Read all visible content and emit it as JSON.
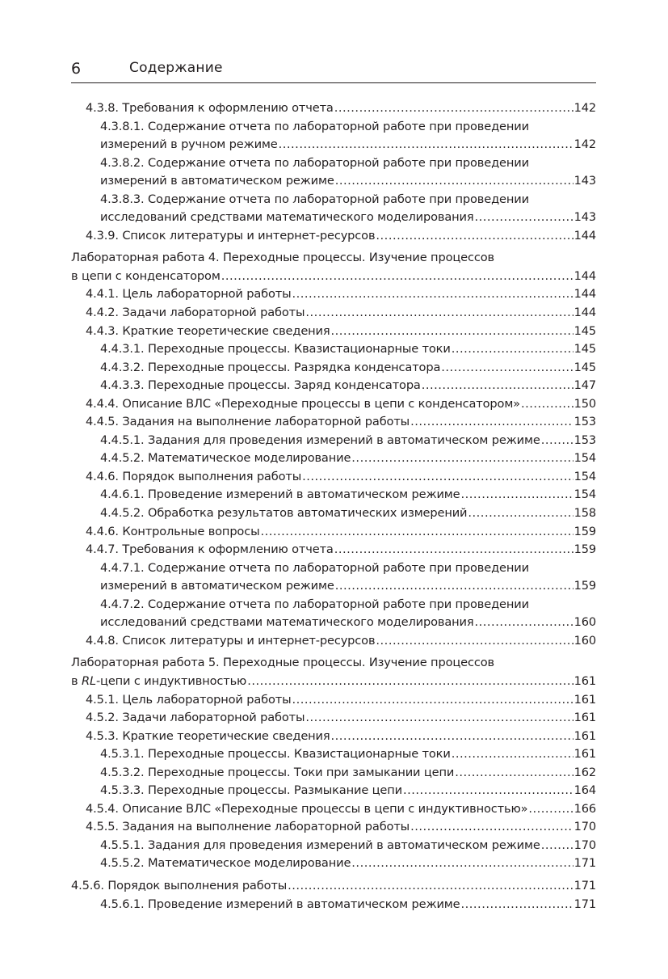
{
  "header": {
    "page_number": "6",
    "title": "Содержание"
  },
  "entries": [
    {
      "level": 1,
      "lines": [
        "4.3.8. Требования к оформлению отчета"
      ],
      "page": "142"
    },
    {
      "level": 2,
      "lines": [
        "4.3.8.1. Содержание отчета по лабораторной работе при проведении",
        "измерений в ручном режиме "
      ],
      "page": "142"
    },
    {
      "level": 2,
      "lines": [
        "4.3.8.2. Содержание отчета по лабораторной работе при проведении",
        "измерений в автоматическом режиме"
      ],
      "page": "143"
    },
    {
      "level": 2,
      "lines": [
        "4.3.8.3. Содержание отчета по лабораторной работе при проведении",
        "исследований средствами математического моделирования"
      ],
      "page": "143"
    },
    {
      "level": 1,
      "lines": [
        "4.3.9. Список литературы и интернет-ресурсов "
      ],
      "page": "144"
    },
    {
      "level": 0,
      "lab": true,
      "lines": [
        "Лабораторная работа 4. Переходные процессы. Изучение процессов",
        "в цепи с конденсатором"
      ],
      "page": "144"
    },
    {
      "level": 1,
      "lines": [
        "4.4.1. Цель лабораторной работы"
      ],
      "page": "144"
    },
    {
      "level": 1,
      "lines": [
        "4.4.2. Задачи лабораторной работы"
      ],
      "page": "144"
    },
    {
      "level": 1,
      "lines": [
        "4.4.3. Краткие теоретические сведения "
      ],
      "page": "145"
    },
    {
      "level": 2,
      "lines": [
        "4.4.3.1. Переходные процессы. Квазистационарные токи"
      ],
      "page": "145"
    },
    {
      "level": 2,
      "lines": [
        "4.4.3.2. Переходные процессы. Разрядка конденсатора "
      ],
      "page": "145"
    },
    {
      "level": 2,
      "lines": [
        "4.4.3.3. Переходные процессы. Заряд конденсатора "
      ],
      "page": "147"
    },
    {
      "level": 1,
      "lines": [
        "4.4.4. Описание ВЛС «Переходные процессы в цепи с конденсатором»"
      ],
      "page": "150"
    },
    {
      "level": 1,
      "lines": [
        "4.4.5. Задания на выполнение лабораторной работы"
      ],
      "page": "153"
    },
    {
      "level": 2,
      "lines": [
        "4.4.5.1. Задания для проведения измерений в автоматическом режиме"
      ],
      "page": "153"
    },
    {
      "level": 2,
      "lines": [
        "4.4.5.2. Математическое моделирование"
      ],
      "page": "154"
    },
    {
      "level": 1,
      "lines": [
        "4.4.6. Порядок выполнения работы"
      ],
      "page": "154"
    },
    {
      "level": 2,
      "lines": [
        "4.4.6.1. Проведение измерений в автоматическом режиме"
      ],
      "page": "154"
    },
    {
      "level": 2,
      "lines": [
        "4.4.5.2. Обработка результатов автоматических измерений"
      ],
      "page": "158"
    },
    {
      "level": 1,
      "lines": [
        "4.4.6. Контрольные вопросы"
      ],
      "page": "159"
    },
    {
      "level": 1,
      "lines": [
        "4.4.7. Требования к оформлению отчета"
      ],
      "page": "159"
    },
    {
      "level": 2,
      "lines": [
        "4.4.7.1. Содержание отчета по лабораторной работе при проведении",
        "измерений в автоматическом режиме"
      ],
      "page": "159"
    },
    {
      "level": 2,
      "lines": [
        "4.4.7.2. Содержание отчета по лабораторной работе при проведении",
        "исследований средствами математического моделирования"
      ],
      "page": "160"
    },
    {
      "level": 1,
      "lines": [
        "4.4.8. Список литературы и интернет-ресурсов "
      ],
      "page": "160"
    },
    {
      "level": 0,
      "lab": true,
      "lines": [
        "Лабораторная работа 5. Переходные процессы. Изучение процессов",
        "в RL-цепи с индуктивностью"
      ],
      "page": "161"
    },
    {
      "level": 1,
      "lines": [
        "4.5.1. Цель лабораторной работы"
      ],
      "page": "161"
    },
    {
      "level": 1,
      "lines": [
        "4.5.2. Задачи лабораторной работы"
      ],
      "page": "161"
    },
    {
      "level": 1,
      "lines": [
        "4.5.3. Краткие теоретические сведения "
      ],
      "page": "161"
    },
    {
      "level": 2,
      "lines": [
        "4.5.3.1. Переходные процессы. Квазистационарные токи"
      ],
      "page": "161"
    },
    {
      "level": 2,
      "lines": [
        "4.5.3.2. Переходные процессы. Токи при замыкании цепи "
      ],
      "page": "162"
    },
    {
      "level": 2,
      "lines": [
        "4.5.3.3. Переходные процессы. Размыкание цепи "
      ],
      "page": "164"
    },
    {
      "level": 1,
      "lines": [
        "4.5.4. Описание ВЛС «Переходные процессы в цепи с индуктивностью»"
      ],
      "page": "166"
    },
    {
      "level": 1,
      "lines": [
        "4.5.5. Задания на выполнение лабораторной работы"
      ],
      "page": "170"
    },
    {
      "level": 2,
      "lines": [
        "4.5.5.1. Задания для проведения измерений в автоматическом режиме"
      ],
      "page": "170"
    },
    {
      "level": 2,
      "lines": [
        "4.5.5.2. Математическое моделирование"
      ],
      "page": "171"
    },
    {
      "level": 0,
      "lab": true,
      "lines": [
        "4.5.6. Порядок выполнения работы"
      ],
      "page": "171"
    },
    {
      "level": 2,
      "lines": [
        "4.5.6.1. Проведение измерений в автоматическом режиме"
      ],
      "page": "171"
    }
  ]
}
